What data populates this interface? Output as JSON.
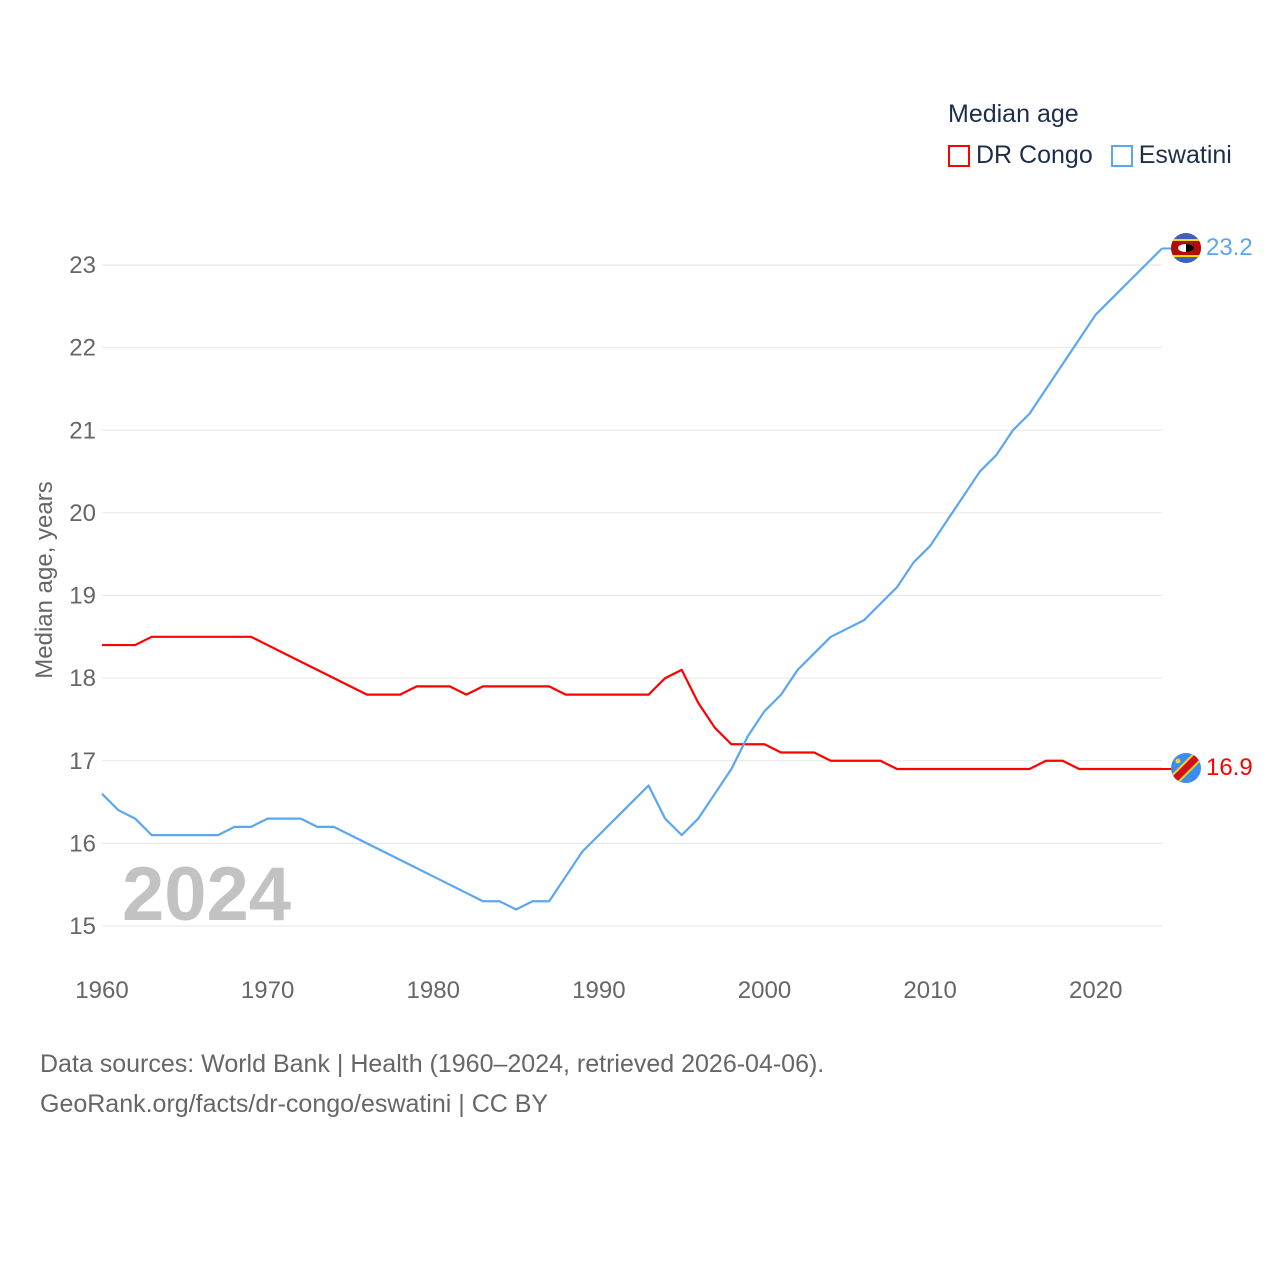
{
  "chart_data": {
    "type": "line",
    "title": "Median age",
    "ylabel": "Median age, years",
    "xlabel": "",
    "xlim": [
      1960,
      2024
    ],
    "ylim": [
      15,
      23
    ],
    "x_ticks": [
      1960,
      1970,
      1980,
      1990,
      2000,
      2010,
      2020
    ],
    "y_ticks": [
      15,
      16,
      17,
      18,
      19,
      20,
      21,
      22,
      23
    ],
    "grid": true,
    "legend_placement": "top-right",
    "year_watermark": "2024",
    "x": [
      1960,
      1961,
      1962,
      1963,
      1964,
      1965,
      1966,
      1967,
      1968,
      1969,
      1970,
      1971,
      1972,
      1973,
      1974,
      1975,
      1976,
      1977,
      1978,
      1979,
      1980,
      1981,
      1982,
      1983,
      1984,
      1985,
      1986,
      1987,
      1988,
      1989,
      1990,
      1991,
      1992,
      1993,
      1994,
      1995,
      1996,
      1997,
      1998,
      1999,
      2000,
      2001,
      2002,
      2003,
      2004,
      2005,
      2006,
      2007,
      2008,
      2009,
      2010,
      2011,
      2012,
      2013,
      2014,
      2015,
      2016,
      2017,
      2018,
      2019,
      2020,
      2021,
      2022,
      2023,
      2024
    ],
    "series": [
      {
        "name": "DR Congo",
        "color": "#ff0000",
        "end_label": "16.9",
        "values": [
          18.4,
          18.4,
          18.4,
          18.5,
          18.5,
          18.5,
          18.5,
          18.5,
          18.5,
          18.5,
          18.4,
          18.3,
          18.2,
          18.1,
          18.0,
          17.9,
          17.8,
          17.8,
          17.8,
          17.9,
          17.9,
          17.9,
          17.8,
          17.9,
          17.9,
          17.9,
          17.9,
          17.9,
          17.8,
          17.8,
          17.8,
          17.8,
          17.8,
          17.8,
          18.0,
          18.1,
          17.7,
          17.4,
          17.2,
          17.2,
          17.2,
          17.1,
          17.1,
          17.1,
          17.0,
          17.0,
          17.0,
          17.0,
          16.9,
          16.9,
          16.9,
          16.9,
          16.9,
          16.9,
          16.9,
          16.9,
          16.9,
          17.0,
          17.0,
          16.9,
          16.9,
          16.9,
          16.9,
          16.9,
          16.9
        ]
      },
      {
        "name": "Eswatini",
        "color": "#5ba6f0",
        "end_label": "23.2",
        "values": [
          16.6,
          16.4,
          16.3,
          16.1,
          16.1,
          16.1,
          16.1,
          16.1,
          16.2,
          16.2,
          16.3,
          16.3,
          16.3,
          16.2,
          16.2,
          16.1,
          16.0,
          15.9,
          15.8,
          15.7,
          15.6,
          15.5,
          15.4,
          15.3,
          15.3,
          15.2,
          15.3,
          15.3,
          15.6,
          15.9,
          16.1,
          16.3,
          16.5,
          16.7,
          16.3,
          16.1,
          16.3,
          16.6,
          16.9,
          17.3,
          17.6,
          17.8,
          18.1,
          18.3,
          18.5,
          18.6,
          18.7,
          18.9,
          19.1,
          19.4,
          19.6,
          19.9,
          20.2,
          20.5,
          20.7,
          21.0,
          21.2,
          21.5,
          21.8,
          22.1,
          22.4,
          22.6,
          22.8,
          23.0,
          23.2
        ]
      }
    ]
  },
  "footer": {
    "line1": "Data sources: World Bank | Health (1960–2024, retrieved 2026-04-06).",
    "line2": "GeoRank.org/facts/dr-congo/eswatini | CC BY"
  }
}
